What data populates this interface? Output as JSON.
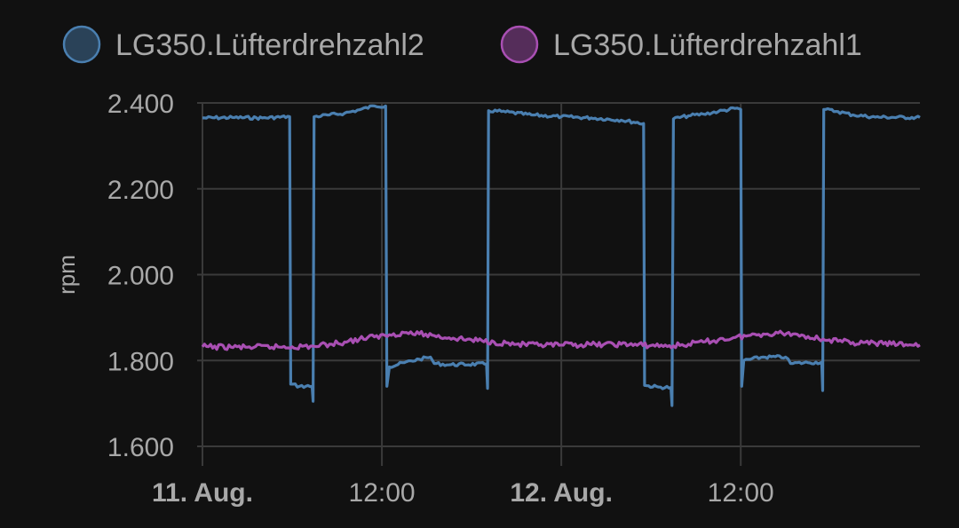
{
  "chart_data": {
    "type": "line",
    "ylabel": "rpm",
    "ylim": [
      1600,
      2400
    ],
    "yticks": [
      {
        "value": 1600,
        "label": "1.600"
      },
      {
        "value": 1800,
        "label": "1.800"
      },
      {
        "value": 2000,
        "label": "2.000"
      },
      {
        "value": 2200,
        "label": "2.200"
      },
      {
        "value": 2400,
        "label": "2.400"
      }
    ],
    "xlim": [
      "2024-08-11 00:00",
      "2024-08-12 23:59"
    ],
    "xticks": [
      {
        "value": "2024-08-11 00:00",
        "label": "11. Aug.",
        "major": true
      },
      {
        "value": "2024-08-11 12:00",
        "label": "12:00",
        "major": false
      },
      {
        "value": "2024-08-12 00:00",
        "label": "12. Aug.",
        "major": true
      },
      {
        "value": "2024-08-12 12:00",
        "label": "12:00",
        "major": false
      }
    ],
    "grid": true,
    "legend_position": "top",
    "series": [
      {
        "name": "LG350.Lüfterdrehzahl2",
        "color": "#4a7fb0",
        "points": [
          [
            "2024-08-11 00:00",
            2365
          ],
          [
            "2024-08-11 02:00",
            2366
          ],
          [
            "2024-08-11 04:00",
            2365
          ],
          [
            "2024-08-11 05:50",
            2368
          ],
          [
            "2024-08-11 05:54",
            1745
          ],
          [
            "2024-08-11 06:30",
            1740
          ],
          [
            "2024-08-11 07:20",
            1740
          ],
          [
            "2024-08-11 07:24",
            1705
          ],
          [
            "2024-08-11 07:28",
            2368
          ],
          [
            "2024-08-11 08:30",
            2372
          ],
          [
            "2024-08-11 09:30",
            2376
          ],
          [
            "2024-08-11 10:30",
            2384
          ],
          [
            "2024-08-11 11:30",
            2393
          ],
          [
            "2024-08-11 12:15",
            2393
          ],
          [
            "2024-08-11 12:20",
            1740
          ],
          [
            "2024-08-11 12:30",
            1785
          ],
          [
            "2024-08-11 13:30",
            1795
          ],
          [
            "2024-08-11 14:30",
            1803
          ],
          [
            "2024-08-11 15:15",
            1808
          ],
          [
            "2024-08-11 15:30",
            1793
          ],
          [
            "2024-08-11 16:30",
            1790
          ],
          [
            "2024-08-11 19:00",
            1792
          ],
          [
            "2024-08-11 19:04",
            1735
          ],
          [
            "2024-08-11 19:08",
            2382
          ],
          [
            "2024-08-11 20:00",
            2380
          ],
          [
            "2024-08-11 22:00",
            2372
          ],
          [
            "2024-08-12 00:00",
            2368
          ],
          [
            "2024-08-12 02:00",
            2365
          ],
          [
            "2024-08-12 04:00",
            2360
          ],
          [
            "2024-08-12 05:30",
            2352
          ],
          [
            "2024-08-12 05:34",
            1742
          ],
          [
            "2024-08-12 06:30",
            1738
          ],
          [
            "2024-08-12 07:20",
            1737
          ],
          [
            "2024-08-12 07:24",
            1695
          ],
          [
            "2024-08-12 07:30",
            2363
          ],
          [
            "2024-08-12 08:30",
            2370
          ],
          [
            "2024-08-12 09:30",
            2374
          ],
          [
            "2024-08-12 10:30",
            2380
          ],
          [
            "2024-08-12 11:45",
            2388
          ],
          [
            "2024-08-12 12:00",
            2385
          ],
          [
            "2024-08-12 12:04",
            1740
          ],
          [
            "2024-08-12 12:12",
            1800
          ],
          [
            "2024-08-12 13:30",
            1808
          ],
          [
            "2024-08-12 15:00",
            1808
          ],
          [
            "2024-08-12 15:20",
            1793
          ],
          [
            "2024-08-12 16:30",
            1795
          ],
          [
            "2024-08-12 17:25",
            1796
          ],
          [
            "2024-08-12 17:29",
            1730
          ],
          [
            "2024-08-12 17:33",
            2385
          ],
          [
            "2024-08-12 18:30",
            2380
          ],
          [
            "2024-08-12 19:30",
            2372
          ],
          [
            "2024-08-12 21:00",
            2367
          ],
          [
            "2024-08-12 23:59",
            2366
          ]
        ]
      },
      {
        "name": "LG350.Lüfterdrehzahl1",
        "color": "#a94fb3",
        "points": [
          [
            "2024-08-11 00:00",
            1832
          ],
          [
            "2024-08-11 03:00",
            1831
          ],
          [
            "2024-08-11 06:00",
            1832
          ],
          [
            "2024-08-11 07:30",
            1833
          ],
          [
            "2024-08-11 08:30",
            1838
          ],
          [
            "2024-08-11 09:30",
            1843
          ],
          [
            "2024-08-11 10:30",
            1850
          ],
          [
            "2024-08-11 11:30",
            1855
          ],
          [
            "2024-08-11 12:30",
            1860
          ],
          [
            "2024-08-11 13:30",
            1865
          ],
          [
            "2024-08-11 14:30",
            1862
          ],
          [
            "2024-08-11 15:30",
            1858
          ],
          [
            "2024-08-11 16:30",
            1853
          ],
          [
            "2024-08-11 18:00",
            1848
          ],
          [
            "2024-08-11 19:30",
            1843
          ],
          [
            "2024-08-11 21:00",
            1838
          ],
          [
            "2024-08-11 22:30",
            1835
          ],
          [
            "2024-08-12 00:00",
            1836
          ],
          [
            "2024-08-12 02:00",
            1837
          ],
          [
            "2024-08-12 04:00",
            1838
          ],
          [
            "2024-08-12 06:00",
            1835
          ],
          [
            "2024-08-12 07:30",
            1834
          ],
          [
            "2024-08-12 08:30",
            1838
          ],
          [
            "2024-08-12 09:30",
            1843
          ],
          [
            "2024-08-12 10:30",
            1848
          ],
          [
            "2024-08-12 11:30",
            1853
          ],
          [
            "2024-08-12 12:30",
            1858
          ],
          [
            "2024-08-12 13:30",
            1862
          ],
          [
            "2024-08-12 14:30",
            1864
          ],
          [
            "2024-08-12 15:30",
            1862
          ],
          [
            "2024-08-12 16:30",
            1856
          ],
          [
            "2024-08-12 17:30",
            1850
          ],
          [
            "2024-08-12 18:30",
            1845
          ],
          [
            "2024-08-12 19:30",
            1842
          ],
          [
            "2024-08-12 21:00",
            1840
          ],
          [
            "2024-08-12 23:59",
            1836
          ]
        ]
      }
    ]
  }
}
